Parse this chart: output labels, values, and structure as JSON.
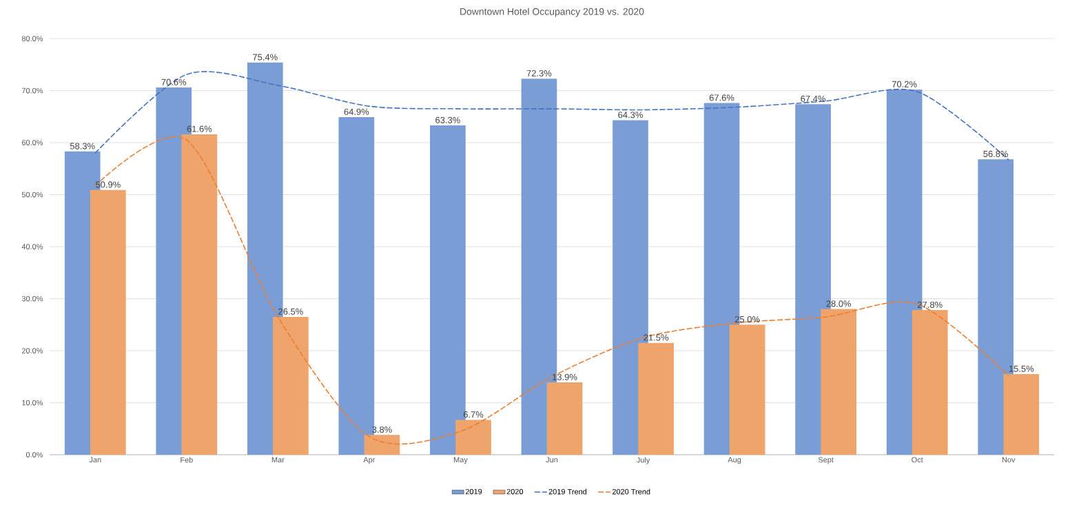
{
  "chart_data": {
    "type": "bar",
    "title": "Downtown Hotel Occupancy 2019 vs. 2020",
    "categories": [
      "Jan",
      "Feb",
      "Mar",
      "Apr",
      "May",
      "Jun",
      "July",
      "Aug",
      "Sept",
      "Oct",
      "Nov"
    ],
    "series": [
      {
        "name": "2019",
        "color": "#7b9dd5",
        "values": [
          58.3,
          70.6,
          75.4,
          64.9,
          63.3,
          72.3,
          64.3,
          67.6,
          67.4,
          70.2,
          56.8
        ],
        "value_labels": [
          "58.3%",
          "70.6%",
          "75.4%",
          "64.9%",
          "63.3%",
          "72.3%",
          "64.3%",
          "67.6%",
          "67.4%",
          "70.2%",
          "56.8%"
        ]
      },
      {
        "name": "2020",
        "color": "#efa46c",
        "values": [
          50.9,
          61.6,
          26.5,
          3.8,
          6.7,
          13.9,
          21.5,
          25.0,
          28.0,
          27.8,
          15.5
        ],
        "value_labels": [
          "50.9%",
          "61.6%",
          "26.5%",
          "3.8%",
          "6.7%",
          "13.9%",
          "21.5%",
          "25.0%",
          "28.0%",
          "27.8%",
          "15.5%"
        ]
      },
      {
        "name": "2019 Trend",
        "type": "line",
        "color": "#4472c4",
        "line_style": "dashed",
        "marker": "none",
        "values": [
          58.0,
          73.1,
          71.0,
          67.0,
          66.5,
          66.5,
          66.3,
          66.8,
          68.0,
          69.8,
          56.7
        ]
      },
      {
        "name": "2020 Trend",
        "type": "line",
        "color": "#ed7d31",
        "line_style": "dashed",
        "marker": "none",
        "values": [
          51.7,
          60.5,
          26.5,
          3.5,
          4.5,
          15.0,
          22.5,
          25.3,
          26.5,
          29.0,
          15.2
        ]
      }
    ],
    "ylim": [
      0,
      80
    ],
    "yticks": [
      {
        "value": 0,
        "label": "0.0%"
      },
      {
        "value": 10,
        "label": "10.0%"
      },
      {
        "value": 20,
        "label": "20.0%"
      },
      {
        "value": 30,
        "label": "30.0%"
      },
      {
        "value": 40,
        "label": "40.0%"
      },
      {
        "value": 50,
        "label": "50.0%"
      },
      {
        "value": 60,
        "label": "60.0%"
      },
      {
        "value": 70,
        "label": "70.0%"
      },
      {
        "value": 80,
        "label": "80.0%"
      }
    ],
    "grid": "y",
    "legend": "bottom"
  }
}
